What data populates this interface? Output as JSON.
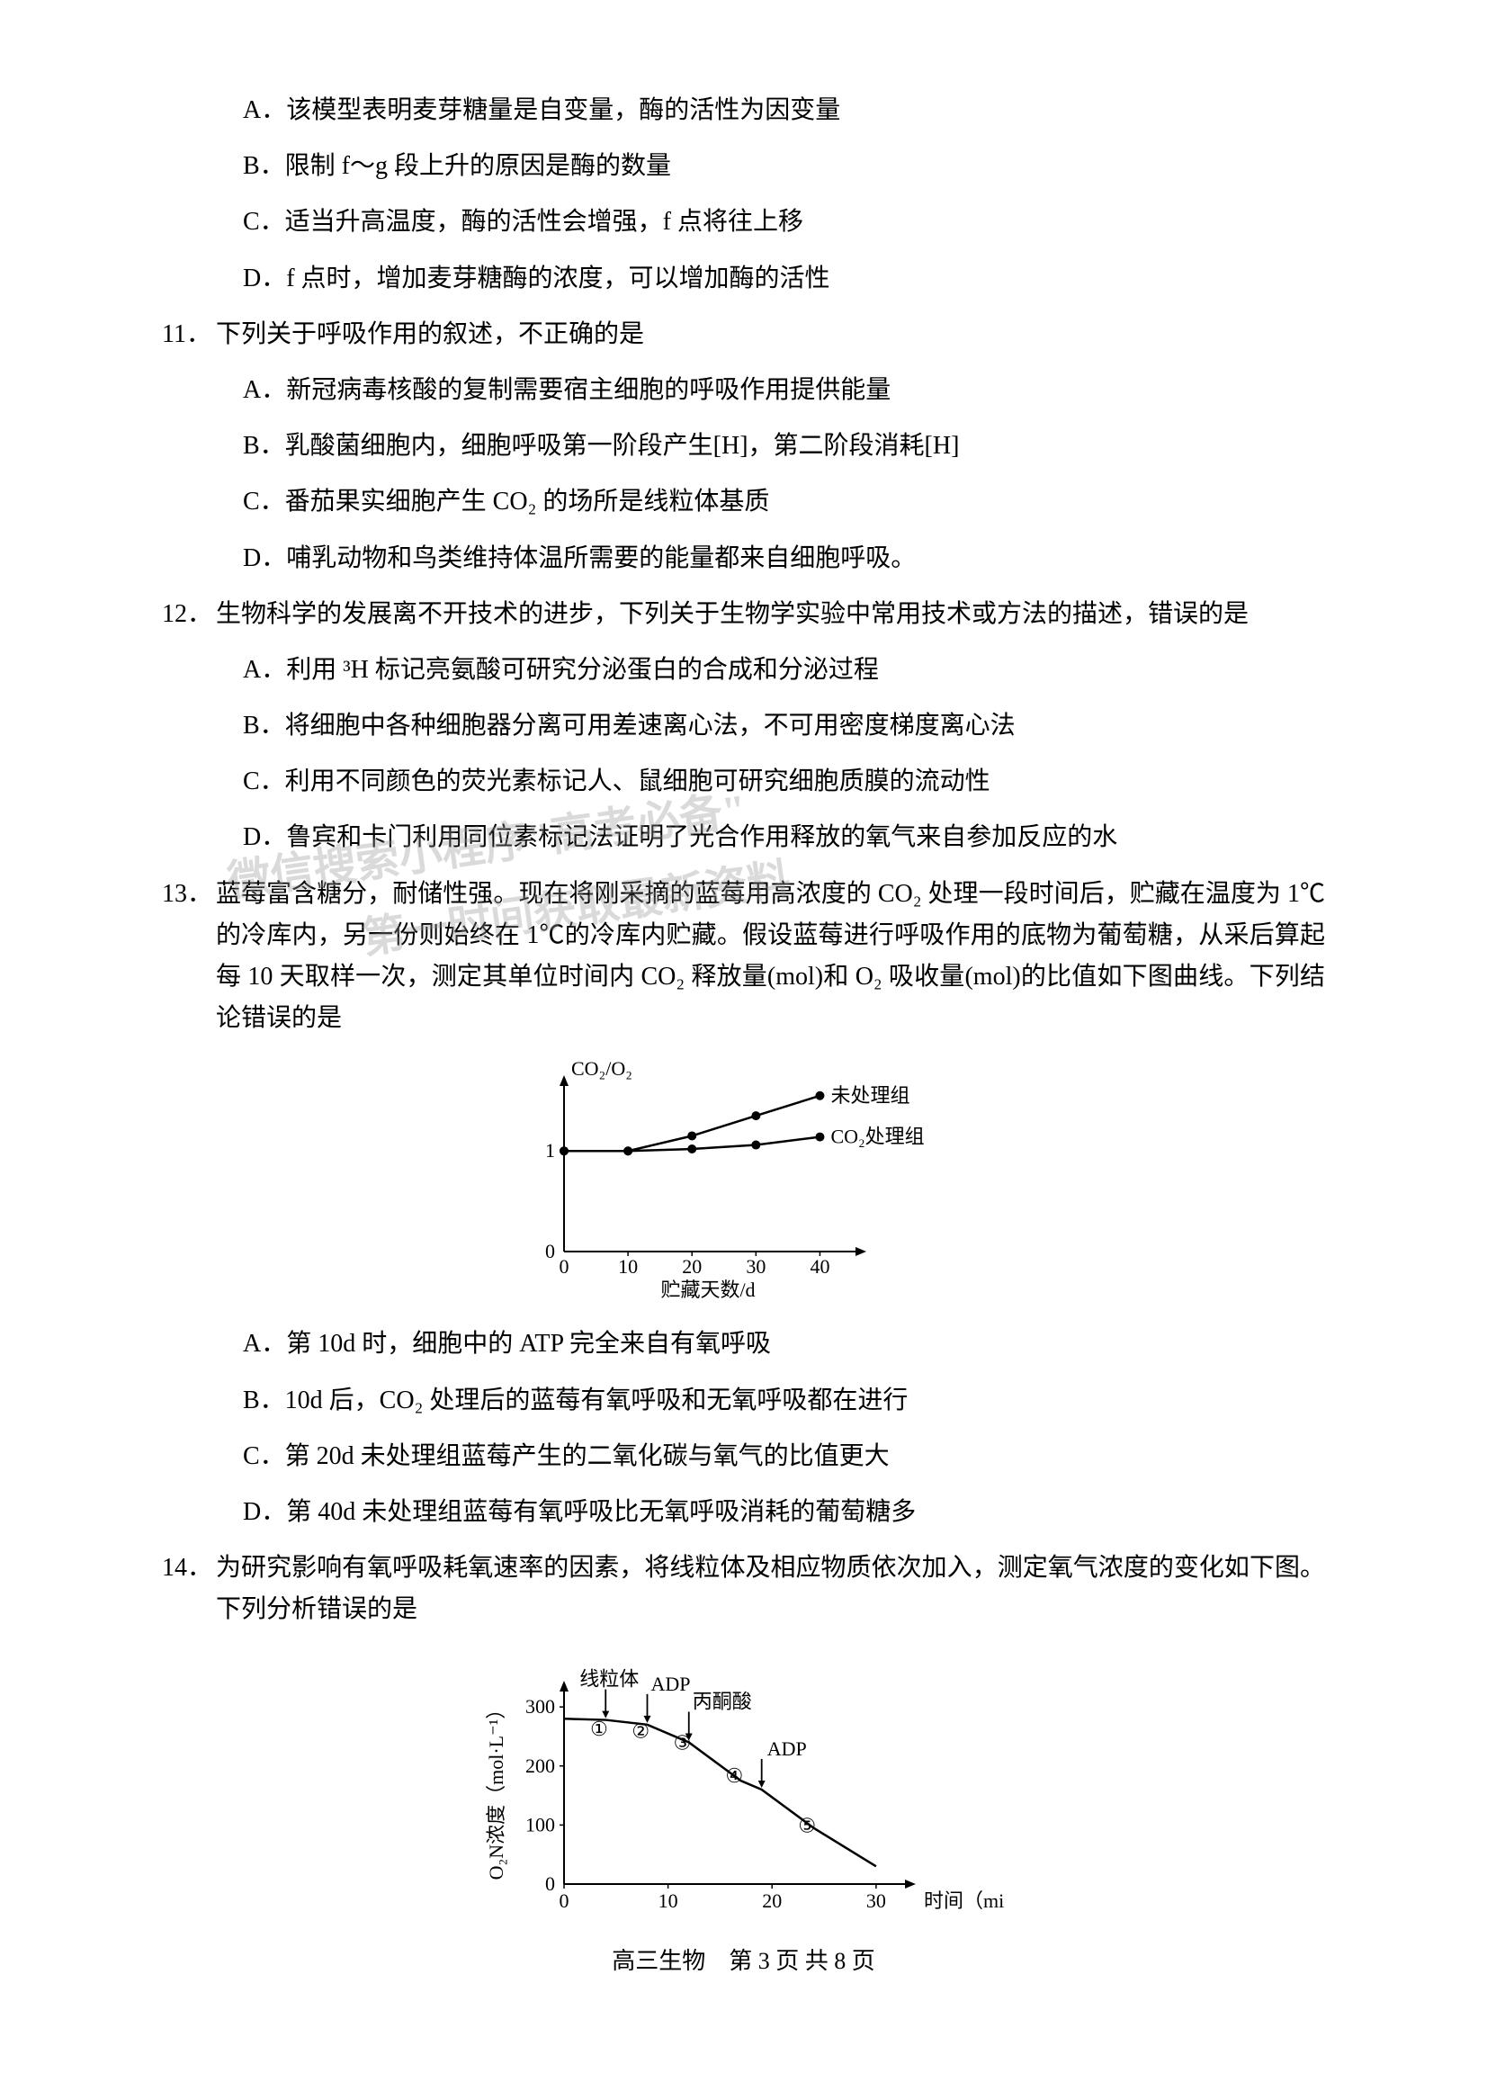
{
  "q10_continued": {
    "options": {
      "A": "A．该模型表明麦芽糖量是自变量，酶的活性为因变量",
      "B": "B．限制 f～g 段上升的原因是酶的数量",
      "C": "C．适当升高温度，酶的活性会增强，f 点将往上移",
      "D": "D．f 点时，增加麦芽糖酶的浓度，可以增加酶的活性"
    }
  },
  "q11": {
    "num": "11．",
    "stem": "下列关于呼吸作用的叙述，不正确的是",
    "options": {
      "A": "A．新冠病毒核酸的复制需要宿主细胞的呼吸作用提供能量",
      "B": "B．乳酸菌细胞内，细胞呼吸第一阶段产生[H]，第二阶段消耗[H]",
      "C": "C．番茄果实细胞产生 CO₂ 的场所是线粒体基质",
      "D": "D．哺乳动物和鸟类维持体温所需要的能量都来自细胞呼吸。"
    }
  },
  "q12": {
    "num": "12．",
    "stem": "生物科学的发展离不开技术的进步，下列关于生物学实验中常用技术或方法的描述，错误的是",
    "options": {
      "A": "A．利用 ³H 标记亮氨酸可研究分泌蛋白的合成和分泌过程",
      "B": "B．将细胞中各种细胞器分离可用差速离心法，不可用密度梯度离心法",
      "C": "C．利用不同颜色的荧光素标记人、鼠细胞可研究细胞质膜的流动性",
      "D": "D．鲁宾和卡门利用同位素标记法证明了光合作用释放的氧气来自参加反应的水"
    }
  },
  "q13": {
    "num": "13．",
    "stem": "蓝莓富含糖分，耐储性强。现在将刚采摘的蓝莓用高浓度的 CO₂ 处理一段时间后，贮藏在温度为 1℃的冷库内，另一份则始终在 1℃的冷库内贮藏。假设蓝莓进行呼吸作用的底物为葡萄糖，从采后算起每 10 天取样一次，测定其单位时间内 CO₂ 释放量(mol)和 O₂ 吸收量(mol)的比值如下图曲线。下列结论错误的是",
    "options": {
      "A": "A．第 10d 时，细胞中的 ATP 完全来自有氧呼吸",
      "B": "B．10d 后，CO₂ 处理后的蓝莓有氧呼吸和无氧呼吸都在进行",
      "C": "C．第 20d 未处理组蓝莓产生的二氧化碳与氧气的比值更大",
      "D": "D．第 40d 未处理组蓝莓有氧呼吸比无氧呼吸消耗的葡萄糖多"
    },
    "chart": {
      "type": "line",
      "y_axis_label": "CO₂/O₂",
      "x_axis_label": "贮藏天数/d",
      "x_categories": [
        "0",
        "10",
        "20",
        "30",
        "40"
      ],
      "y_ticks": [
        "0",
        "1"
      ],
      "series": [
        {
          "name": "未处理组",
          "label": "未处理组",
          "points": [
            [
              0,
              1.0
            ],
            [
              10,
              1.0
            ],
            [
              20,
              1.15
            ],
            [
              30,
              1.35
            ],
            [
              40,
              1.55
            ]
          ],
          "color": "#000000",
          "marker": "dot"
        },
        {
          "name": "CO2处理组",
          "label": "CO₂处理组",
          "points": [
            [
              0,
              1.0
            ],
            [
              10,
              1.0
            ],
            [
              20,
              1.02
            ],
            [
              30,
              1.06
            ],
            [
              40,
              1.14
            ]
          ],
          "color": "#000000",
          "marker": "dot"
        }
      ],
      "xlim": [
        0,
        45
      ],
      "ylim": [
        0,
        1.7
      ],
      "line_width": 2.5,
      "marker_size": 5,
      "background_color": "#ffffff",
      "axis_color": "#000000",
      "font_size": 22
    }
  },
  "q14": {
    "num": "14．",
    "stem": "为研究影响有氧呼吸耗氧速率的因素，将线粒体及相应物质依次加入，测定氧气浓度的变化如下图。下列分析错误的是",
    "chart": {
      "type": "line",
      "y_axis_label": "O₂N浓度（mol·L⁻¹）",
      "x_axis_label": "时间（min）",
      "x_ticks": [
        "0",
        "10",
        "20",
        "30"
      ],
      "y_ticks": [
        "0",
        "100",
        "200",
        "300"
      ],
      "annotations": [
        {
          "label": "线粒体",
          "x": 4,
          "arrow": true
        },
        {
          "label": "ADP",
          "x": 8,
          "arrow": true
        },
        {
          "label": "丙酮酸",
          "x": 12,
          "arrow": true
        },
        {
          "label": "ADP",
          "x": 19,
          "arrow": true
        }
      ],
      "segment_labels": [
        "①",
        "②",
        "③",
        "④",
        "⑤"
      ],
      "line_points": [
        [
          0,
          280
        ],
        [
          4,
          278
        ],
        [
          8,
          270
        ],
        [
          12,
          240
        ],
        [
          17,
          175
        ],
        [
          19,
          160
        ],
        [
          24,
          95
        ],
        [
          30,
          30
        ]
      ],
      "xlim": [
        0,
        32
      ],
      "ylim": [
        0,
        320
      ],
      "line_width": 2.5,
      "color": "#000000",
      "background_color": "#ffffff",
      "axis_color": "#000000",
      "font_size": 22
    }
  },
  "watermarks": {
    "w1": "微信搜索小程序\"高考必备\"",
    "w2": "第一时间获取最新资料"
  },
  "footer": "高三生物　第 3 页 共 8 页"
}
